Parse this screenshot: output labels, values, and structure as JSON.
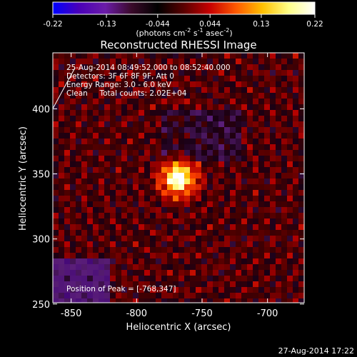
{
  "colorbar": {
    "ticks": [
      -0.22,
      -0.13,
      -0.044,
      0.044,
      0.13,
      0.22
    ],
    "tick_labels": [
      "-0.22",
      "-0.13",
      "-0.044",
      "0.044",
      "0.13",
      "0.22"
    ],
    "unit": "(photons cm",
    "unit_exp1": "-2",
    "unit_mid": " s",
    "unit_exp2": "-1",
    "unit_tail": " asec",
    "unit_exp3": "-2",
    "unit_close": ")",
    "colors": [
      "#0000ff",
      "#4a00b8",
      "#6b1ca8",
      "#3a0a2a",
      "#000000",
      "#5a0000",
      "#c80000",
      "#ff5a00",
      "#ffc000",
      "#ffff88",
      "#ffffff"
    ]
  },
  "title": "Reconstructed RHESSI Image",
  "annotations": {
    "time_range": "25-Aug-2014 08:49:52.000 to 08:52:40.000",
    "detectors": "Detectors: 3F 6F 8F 9F, Att 0",
    "energy": "Energy Range: 3.0 - 6.0 keV",
    "clean": "Clean     Total counts: 2.02E+04",
    "peak": "Position of Peak = [-768,347]"
  },
  "chart_data": {
    "type": "heatmap",
    "title": "Reconstructed RHESSI Image",
    "xlabel": "Heliocentric X (arcsec)",
    "ylabel": "Heliocentric Y (arcsec)",
    "xlim": [
      -864,
      -672
    ],
    "ylim": [
      251,
      443
    ],
    "x_ticks": [
      -850,
      -800,
      -750,
      -700
    ],
    "x_tick_labels": [
      "-850",
      "-800",
      "-750",
      "-700"
    ],
    "y_ticks": [
      250,
      300,
      350,
      400
    ],
    "y_tick_labels": [
      "250",
      "300",
      "350",
      "400"
    ],
    "value_range": [
      -0.22,
      0.22
    ],
    "peak_position": [
      -768,
      347
    ],
    "legend": "colorbar-top"
  },
  "footer_timestamp": "27-Aug-2014 17:22"
}
